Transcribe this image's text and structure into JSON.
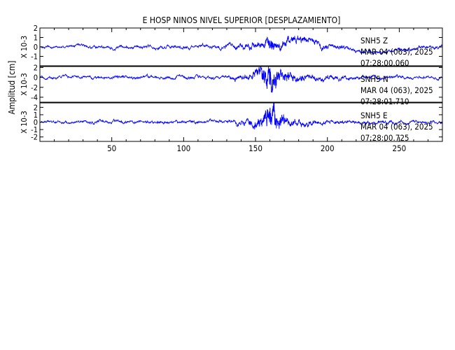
{
  "chart_data": {
    "type": "line",
    "title": "E HOSP NINOS NIVEL SUPERIOR [DESPLAZAMIENTO]",
    "ylabel": "Amplitud [cm]",
    "trace_color": "#0000ff",
    "xlim": [
      0,
      280
    ],
    "x_ticks": [
      50,
      100,
      150,
      200,
      250
    ],
    "series": [
      {
        "name": "SNH5 Z",
        "station": "SNH5",
        "component": "Z",
        "date_label": "MAR 04 (063), 2025",
        "time_label": "07:28:00.060",
        "scale_label": "X 10-3",
        "ylim": [
          -2,
          2
        ],
        "y_ticks": [
          -1,
          0,
          1,
          2
        ],
        "envelope": [
          [
            0,
            0.22
          ],
          [
            120,
            0.32
          ],
          [
            133,
            0.45
          ],
          [
            140,
            0.55
          ],
          [
            150,
            0.62
          ],
          [
            157,
            0.8
          ],
          [
            160,
            1.0
          ],
          [
            165,
            0.85
          ],
          [
            175,
            0.72
          ],
          [
            190,
            0.6
          ],
          [
            205,
            0.48
          ],
          [
            220,
            0.38
          ],
          [
            250,
            0.3
          ],
          [
            280,
            0.28
          ]
        ],
        "offset": [
          [
            0,
            0
          ],
          [
            60,
            0
          ],
          [
            100,
            -0.05
          ],
          [
            145,
            0.2
          ],
          [
            160,
            0.4
          ],
          [
            185,
            0.55
          ],
          [
            198,
            0.2
          ],
          [
            215,
            -0.2
          ],
          [
            232,
            -0.55
          ],
          [
            260,
            -0.2
          ],
          [
            280,
            0
          ]
        ]
      },
      {
        "name": "SNH5 N",
        "station": "SNH5",
        "component": "N",
        "date_label": "MAR 04 (063), 2025",
        "time_label": "07:28:01.710",
        "scale_label": "X 10-3",
        "ylim": [
          -5,
          2.2
        ],
        "y_ticks": [
          -4,
          -2,
          0,
          2
        ],
        "envelope": [
          [
            0,
            0.45
          ],
          [
            130,
            0.55
          ],
          [
            140,
            0.85
          ],
          [
            150,
            1.2
          ],
          [
            155,
            2.0
          ],
          [
            158,
            3.2
          ],
          [
            160,
            3.6
          ],
          [
            163,
            2.5
          ],
          [
            168,
            1.6
          ],
          [
            175,
            1.1
          ],
          [
            190,
            0.8
          ],
          [
            210,
            0.6
          ],
          [
            280,
            0.45
          ]
        ],
        "offset": [
          [
            0,
            0
          ],
          [
            280,
            0
          ]
        ]
      },
      {
        "name": "SNH5 E",
        "station": "SNH5",
        "component": "E",
        "date_label": "MAR 04 (063), 2025",
        "time_label": "07:28:00.725",
        "scale_label": "X 10-3",
        "ylim": [
          -2.6,
          2.6
        ],
        "y_ticks": [
          -2,
          -1,
          0,
          1,
          2
        ],
        "envelope": [
          [
            0,
            0.3
          ],
          [
            130,
            0.38
          ],
          [
            137,
            0.6
          ],
          [
            148,
            0.8
          ],
          [
            155,
            1.2
          ],
          [
            158,
            1.9
          ],
          [
            161,
            2.1
          ],
          [
            165,
            1.5
          ],
          [
            172,
            0.9
          ],
          [
            185,
            0.6
          ],
          [
            205,
            0.45
          ],
          [
            280,
            0.32
          ]
        ],
        "offset": [
          [
            0,
            0
          ],
          [
            280,
            0
          ]
        ]
      }
    ]
  }
}
